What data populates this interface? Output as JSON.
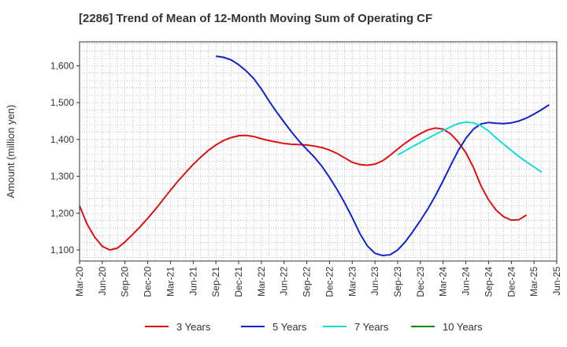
{
  "chart_data": {
    "type": "line",
    "title": "[2286]  Trend of Mean of 12-Month Moving Sum of Operating CF",
    "xlabel": "",
    "ylabel": "Amount (million yen)",
    "ylim": [
      1070,
      1665
    ],
    "yticks": [
      1100,
      1200,
      1300,
      1400,
      1500,
      1600
    ],
    "ytick_labels": [
      "1,100",
      "1,200",
      "1,300",
      "1,400",
      "1,500",
      "1,600"
    ],
    "x_start": "Mar-20",
    "x_range_months": [
      0,
      63
    ],
    "xticks": [
      "Mar-20",
      "Jun-20",
      "Sep-20",
      "Dec-20",
      "Mar-21",
      "Jun-21",
      "Sep-21",
      "Dec-21",
      "Mar-22",
      "Jun-22",
      "Sep-22",
      "Dec-22",
      "Mar-23",
      "Jun-23",
      "Sep-23",
      "Dec-23",
      "Mar-24",
      "Jun-24",
      "Sep-24",
      "Dec-24",
      "Mar-25",
      "Jun-25"
    ],
    "grid": true,
    "legend_position": "bottom",
    "series": [
      {
        "name": "3 Years",
        "color": "#dd1111",
        "start_month": 0,
        "values": [
          1220,
          1170,
          1135,
          1110,
          1100,
          1105,
          1122,
          1142,
          1163,
          1186,
          1210,
          1236,
          1262,
          1287,
          1310,
          1332,
          1352,
          1370,
          1385,
          1397,
          1405,
          1410,
          1411,
          1408,
          1402,
          1397,
          1393,
          1389,
          1387,
          1386,
          1385,
          1382,
          1378,
          1371,
          1362,
          1350,
          1338,
          1332,
          1330,
          1333,
          1342,
          1357,
          1374,
          1390,
          1404,
          1416,
          1426,
          1431,
          1428,
          1415,
          1393,
          1364,
          1324,
          1274,
          1236,
          1208,
          1190,
          1181,
          1182,
          1195
        ]
      },
      {
        "name": "5 Years",
        "color": "#1122cc",
        "start_month": 18,
        "values": [
          1626,
          1623,
          1616,
          1603,
          1586,
          1565,
          1537,
          1505,
          1475,
          1447,
          1420,
          1395,
          1373,
          1352,
          1327,
          1297,
          1264,
          1228,
          1188,
          1145,
          1111,
          1091,
          1085,
          1087,
          1100,
          1122,
          1150,
          1180,
          1212,
          1248,
          1288,
          1330,
          1370,
          1403,
          1428,
          1442,
          1446,
          1444,
          1443,
          1445,
          1450,
          1458,
          1469,
          1481,
          1494
        ]
      },
      {
        "name": "7 Years",
        "color": "#11dddd",
        "start_month": 42,
        "values": [
          1358,
          1369,
          1381,
          1392,
          1403,
          1414,
          1424,
          1434,
          1443,
          1447,
          1445,
          1437,
          1423,
          1404,
          1387,
          1370,
          1354,
          1339,
          1325,
          1311
        ]
      },
      {
        "name": "10 Years",
        "color": "#118811",
        "start_month": 60,
        "values": []
      }
    ]
  }
}
